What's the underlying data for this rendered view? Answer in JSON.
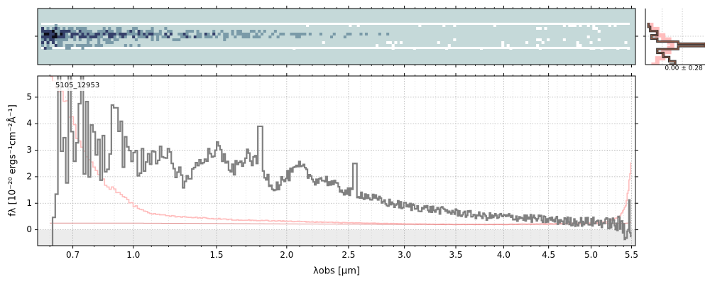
{
  "chart_data": [
    {
      "type": "heatmap",
      "panel": "2d-spectrum",
      "colormap": [
        "#ffffff",
        "#c5d9d9",
        "#7a9aa8",
        "#35406a",
        "#0c0c18"
      ],
      "background_color": "#c5d9d9",
      "note_rows": 9
    },
    {
      "type": "line",
      "panel": "1d-spectrum",
      "object_label": "5105_12953",
      "xlabel": "λobs [μm]",
      "ylabel": "fλ [10⁻²⁰ ergs⁻¹cm⁻²Å⁻¹]",
      "xlim": [
        0.55,
        5.55
      ],
      "ylim": [
        -0.6,
        5.8
      ],
      "x_scale": "sqrt",
      "grid": true,
      "x_ticks": [
        {
          "value": 0.7,
          "label": "0.7"
        },
        {
          "value": 1.0,
          "label": "1.0"
        },
        {
          "value": 1.5,
          "label": "1.5"
        },
        {
          "value": 2.0,
          "label": "2.0"
        },
        {
          "value": 2.5,
          "label": "2.5"
        },
        {
          "value": 3.0,
          "label": "3.0"
        },
        {
          "value": 3.5,
          "label": "3.5"
        },
        {
          "value": 4.0,
          "label": "4.0"
        },
        {
          "value": 4.5,
          "label": "4.5"
        },
        {
          "value": 5.0,
          "label": "5.0"
        },
        {
          "value": 5.5,
          "label": "5.5"
        }
      ],
      "y_ticks": [
        {
          "value": 0,
          "label": "0"
        },
        {
          "value": 1,
          "label": "1"
        },
        {
          "value": 2,
          "label": "2"
        },
        {
          "value": 3,
          "label": "3"
        },
        {
          "value": 4,
          "label": "4"
        },
        {
          "value": 5,
          "label": "5"
        }
      ],
      "colors": {
        "flux": "#808080",
        "error": "#ffbdbd",
        "model": "#d56a6a",
        "zero_band": "#ececec"
      },
      "flux_anchors": {
        "x": [
          0.6,
          0.65,
          0.7,
          0.75,
          0.8,
          0.85,
          0.9,
          0.95,
          1.0,
          1.1,
          1.2,
          1.3,
          1.4,
          1.5,
          1.6,
          1.7,
          1.8,
          1.9,
          2.0,
          2.1,
          2.2,
          2.3,
          2.4,
          2.5,
          2.6,
          2.7,
          2.8,
          3.0,
          3.2,
          3.4,
          3.6,
          3.8,
          4.0,
          4.2,
          4.4,
          4.6,
          4.8,
          5.0,
          5.2,
          5.3,
          5.4,
          5.45,
          5.5
        ],
        "y": [
          2.6,
          3.2,
          3.7,
          3.6,
          3.4,
          3.1,
          3.4,
          2.6,
          2.4,
          2.9,
          2.7,
          1.7,
          2.8,
          3.1,
          2.2,
          2.8,
          2.4,
          1.6,
          2.0,
          2.4,
          1.9,
          1.9,
          1.6,
          1.4,
          1.35,
          1.2,
          1.05,
          0.9,
          0.8,
          0.7,
          0.6,
          0.5,
          0.5,
          0.45,
          0.4,
          0.35,
          0.3,
          0.3,
          0.25,
          0.2,
          0.15,
          0.25,
          0.3
        ]
      },
      "flux_spikes": [
        {
          "x": 0.9,
          "y": 4.6
        },
        {
          "x": 1.8,
          "y": 3.9
        },
        {
          "x": 2.55,
          "y": 2.5
        }
      ],
      "error_anchors": {
        "x": [
          0.6,
          0.65,
          0.7,
          0.75,
          0.8,
          0.85,
          0.9,
          0.95,
          1.0,
          1.1,
          1.2,
          1.4,
          1.6,
          2.0,
          2.5,
          3.0,
          3.5,
          4.0,
          4.5,
          5.0,
          5.2,
          5.35,
          5.42,
          5.46,
          5.5
        ],
        "y": [
          5.8,
          5.2,
          3.9,
          2.9,
          2.3,
          1.7,
          1.5,
          1.2,
          0.9,
          0.6,
          0.52,
          0.45,
          0.38,
          0.32,
          0.26,
          0.22,
          0.2,
          0.2,
          0.22,
          0.26,
          0.3,
          0.5,
          0.9,
          1.6,
          2.7
        ]
      },
      "model_anchors": {
        "x": [
          0.6,
          1.0,
          2.0,
          3.0,
          4.0,
          5.0,
          5.45,
          5.5
        ],
        "y": [
          0.25,
          0.25,
          0.22,
          0.2,
          0.2,
          0.22,
          0.25,
          0.3
        ]
      }
    },
    {
      "type": "line",
      "panel": "spatial-profile",
      "xlim": [
        0,
        1
      ],
      "annotation": "0.00 ± 0.28",
      "colors": {
        "error": "#ffbdbd",
        "line_outer": "#2b2b2b",
        "line_inner": "#8a5a48"
      },
      "profile": {
        "y": [
          0,
          0.1,
          0.2,
          0.3,
          0.38,
          0.45,
          0.5,
          0.56,
          0.63,
          0.72,
          0.82,
          0.92,
          1.0
        ],
        "x": [
          0.05,
          0.08,
          0.2,
          0.1,
          0.2,
          0.55,
          1.0,
          0.55,
          0.2,
          0.3,
          0.4,
          0.5,
          0.4
        ]
      },
      "error_profile": {
        "y": [
          0,
          0.15,
          0.3,
          0.4,
          0.47,
          0.53,
          0.6,
          0.7,
          0.85,
          1.0
        ],
        "x": [
          0.1,
          0.2,
          0.3,
          0.4,
          0.45,
          0.45,
          0.4,
          0.3,
          0.2,
          0.1
        ]
      }
    }
  ]
}
